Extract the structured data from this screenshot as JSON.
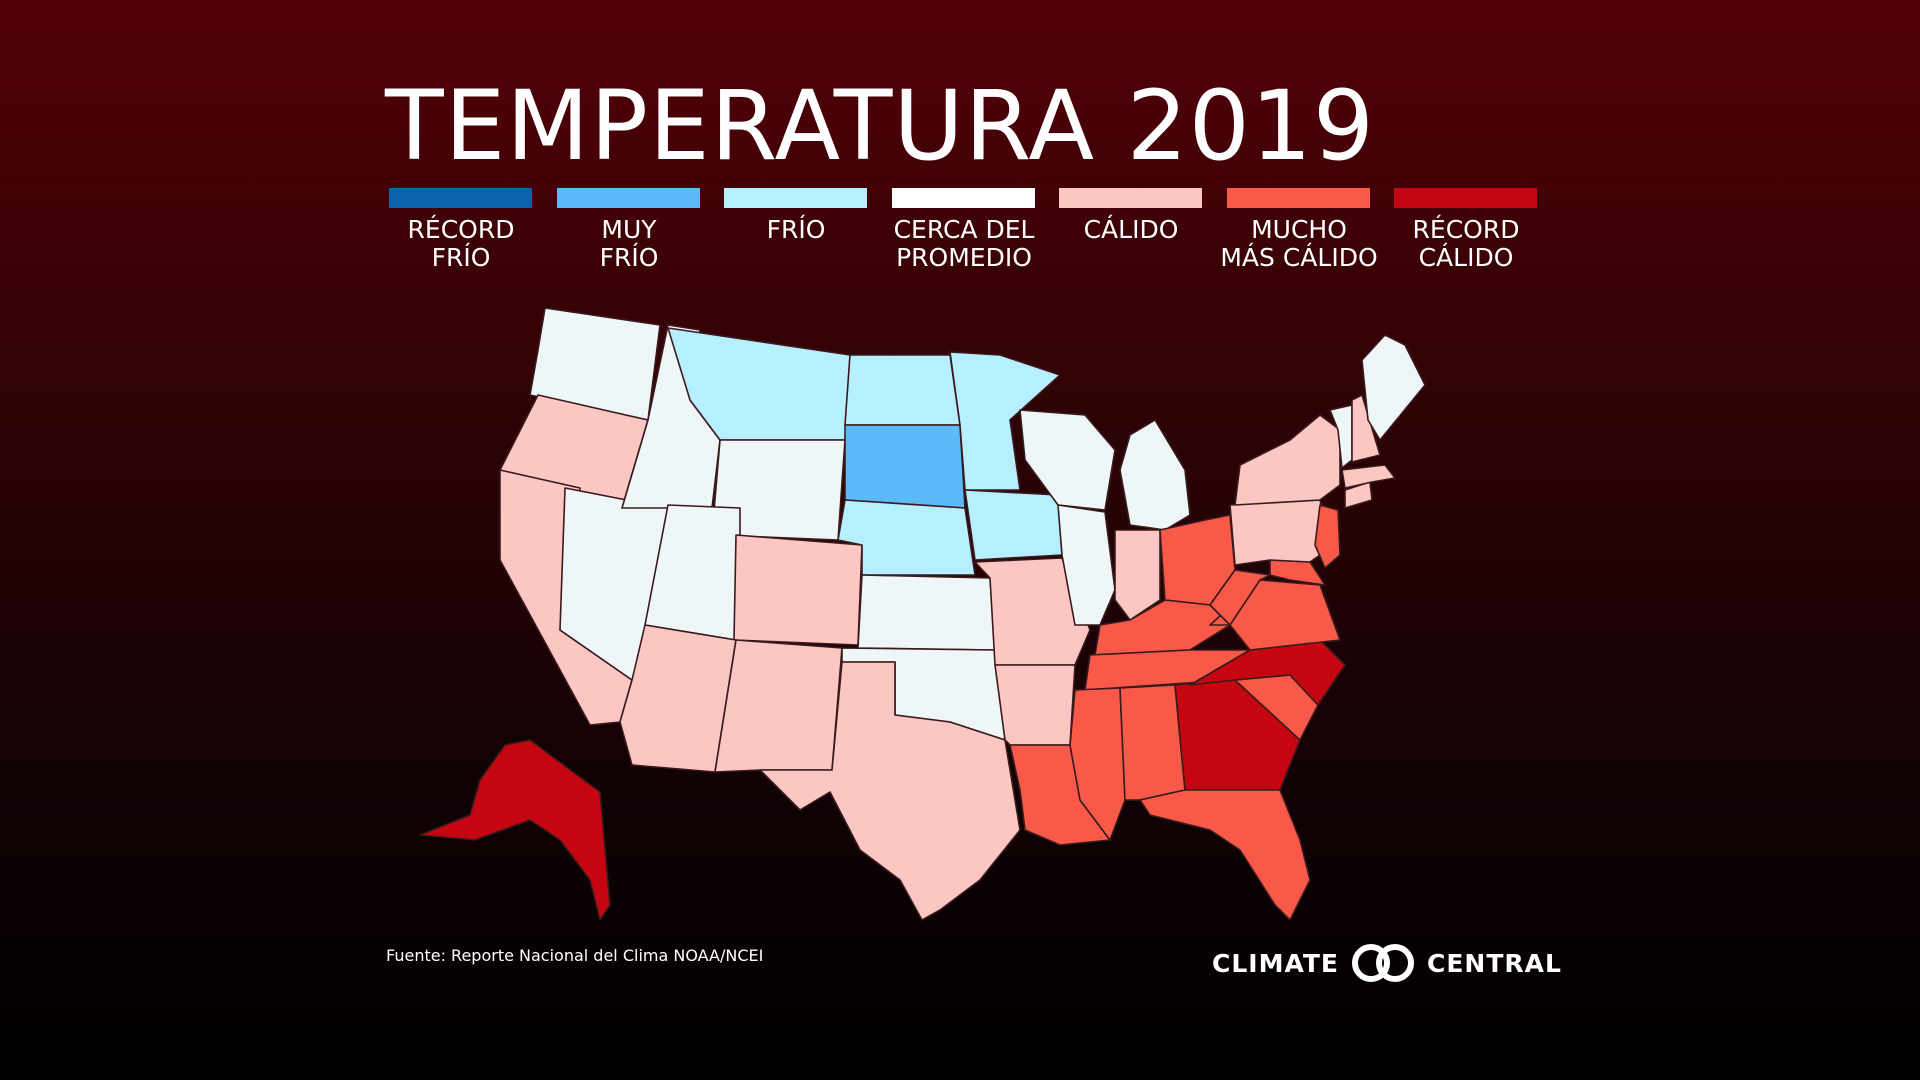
{
  "title": "TEMPERATURA 2019",
  "legend": [
    {
      "line1": "RÉCORD",
      "line2": "FRÍO",
      "color": "#0a62ad"
    },
    {
      "line1": "MUY",
      "line2": "FRÍO",
      "color": "#5cbaf8"
    },
    {
      "line1": "FRÍO",
      "line2": "",
      "color": "#b6efff"
    },
    {
      "line1": "CERCA DEL",
      "line2": "PROMEDIO",
      "color": "#ffffff"
    },
    {
      "line1": "CÁLIDO",
      "line2": "",
      "color": "#fcc6c2"
    },
    {
      "line1": "MUCHO",
      "line2": "MÁS CÁLIDO",
      "color": "#f85948"
    },
    {
      "line1": "RÉCORD",
      "line2": "CÁLIDO",
      "color": "#c50611"
    }
  ],
  "state_colors": {
    "near_average": "#eef6f8",
    "cold": "#b6efff",
    "very_cold": "#5cbaf8",
    "warm": "#fcc6c2",
    "much_warmer": "#f85948",
    "record_warm": "#c50611"
  },
  "source": "Fuente: Reporte Nacional del Clima NOAA/NCEI",
  "brand": {
    "left": "CLIMATE",
    "right": "CENTRAL"
  }
}
